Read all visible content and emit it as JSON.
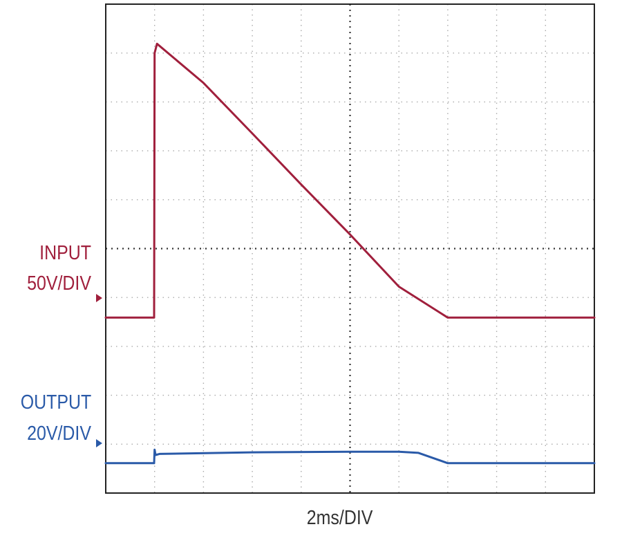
{
  "chart_data": {
    "type": "line",
    "title": "",
    "xlabel": "2ms/DIV",
    "x_units": "divisions",
    "y_units": "divisions",
    "xlim": [
      0,
      10
    ],
    "ylim": [
      -4,
      5
    ],
    "grid": "dotted",
    "series": [
      {
        "name": "INPUT",
        "scale": "50V/DIV",
        "color": "#a01f3c",
        "points": [
          [
            0,
            -0.77
          ],
          [
            0.99,
            -0.77
          ],
          [
            1.0,
            4.1
          ],
          [
            1.05,
            4.27
          ],
          [
            2.0,
            3.55
          ],
          [
            3.0,
            2.62
          ],
          [
            4.0,
            1.68
          ],
          [
            5.0,
            0.76
          ],
          [
            6.0,
            -0.2
          ],
          [
            7.0,
            -0.77
          ],
          [
            10.0,
            -0.77
          ]
        ]
      },
      {
        "name": "OUTPUT",
        "scale": "20V/DIV",
        "color": "#2a5aa8",
        "points": [
          [
            0,
            -3.45
          ],
          [
            0.99,
            -3.45
          ],
          [
            1.0,
            -3.2
          ],
          [
            1.02,
            -3.3
          ],
          [
            1.1,
            -3.28
          ],
          [
            3.0,
            -3.25
          ],
          [
            5.0,
            -3.24
          ],
          [
            6.0,
            -3.24
          ],
          [
            6.4,
            -3.26
          ],
          [
            7.0,
            -3.45
          ],
          [
            10.0,
            -3.45
          ]
        ]
      }
    ],
    "labels": {
      "input_name": "INPUT",
      "input_scale": "50V/DIV",
      "output_name": "OUTPUT",
      "output_scale": "20V/DIV"
    }
  }
}
